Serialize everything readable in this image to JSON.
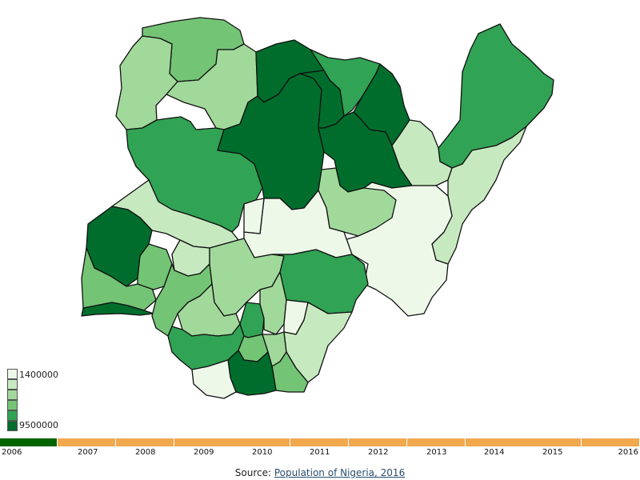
{
  "map": {
    "colors": {
      "c1": "#edf8e9",
      "c2": "#c7e9c0",
      "c3": "#a1d99b",
      "c4": "#74c476",
      "c5": "#31a354",
      "c6": "#006d2c"
    }
  },
  "legend": {
    "min_label": "1400000",
    "max_label": "9500000",
    "swatches": [
      "#edf8e9",
      "#c7e9c0",
      "#a1d99b",
      "#74c476",
      "#31a354",
      "#006d2c"
    ]
  },
  "timeline": {
    "active_color": "#006400",
    "inactive_color": "#f2a94e",
    "selected": "2006",
    "years": [
      "2006",
      "2007",
      "2008",
      "2009",
      "2010",
      "2011",
      "2012",
      "2013",
      "2014",
      "2015",
      "2016"
    ]
  },
  "source": {
    "prefix": "Source: ",
    "link_text": "Population of Nigeria, 2016"
  }
}
